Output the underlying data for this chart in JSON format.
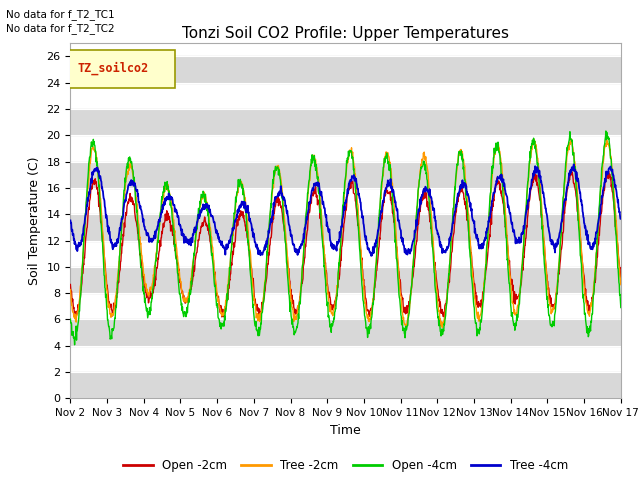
{
  "title": "Tonzi Soil CO2 Profile: Upper Temperatures",
  "ylabel": "Soil Temperature (C)",
  "xlabel": "Time",
  "no_data_text1": "No data for f_T2_TC1",
  "no_data_text2": "No data for f_T2_TC2",
  "legend_box_label": "TZ_soilco2",
  "xticklabels": [
    "Nov 2",
    "Nov 3",
    "Nov 4",
    "Nov 5",
    "Nov 6",
    "Nov 7",
    "Nov 8",
    "Nov 9",
    "Nov 10",
    "Nov 11",
    "Nov 12",
    "Nov 13",
    "Nov 14",
    "Nov 15",
    "Nov 16",
    "Nov 17"
  ],
  "ylim": [
    0,
    27
  ],
  "yticks": [
    0,
    2,
    4,
    6,
    8,
    10,
    12,
    14,
    16,
    18,
    20,
    22,
    24,
    26
  ],
  "colors": {
    "open_2cm": "#cc0000",
    "tree_2cm": "#ff9900",
    "open_4cm": "#00cc00",
    "tree_4cm": "#0000cc"
  },
  "legend_labels": [
    "Open -2cm",
    "Tree -2cm",
    "Open -4cm",
    "Tree -4cm"
  ],
  "band_color": "#d8d8d8",
  "bg_color": "#ffffff",
  "n_days": 15,
  "pts_per_day": 96
}
